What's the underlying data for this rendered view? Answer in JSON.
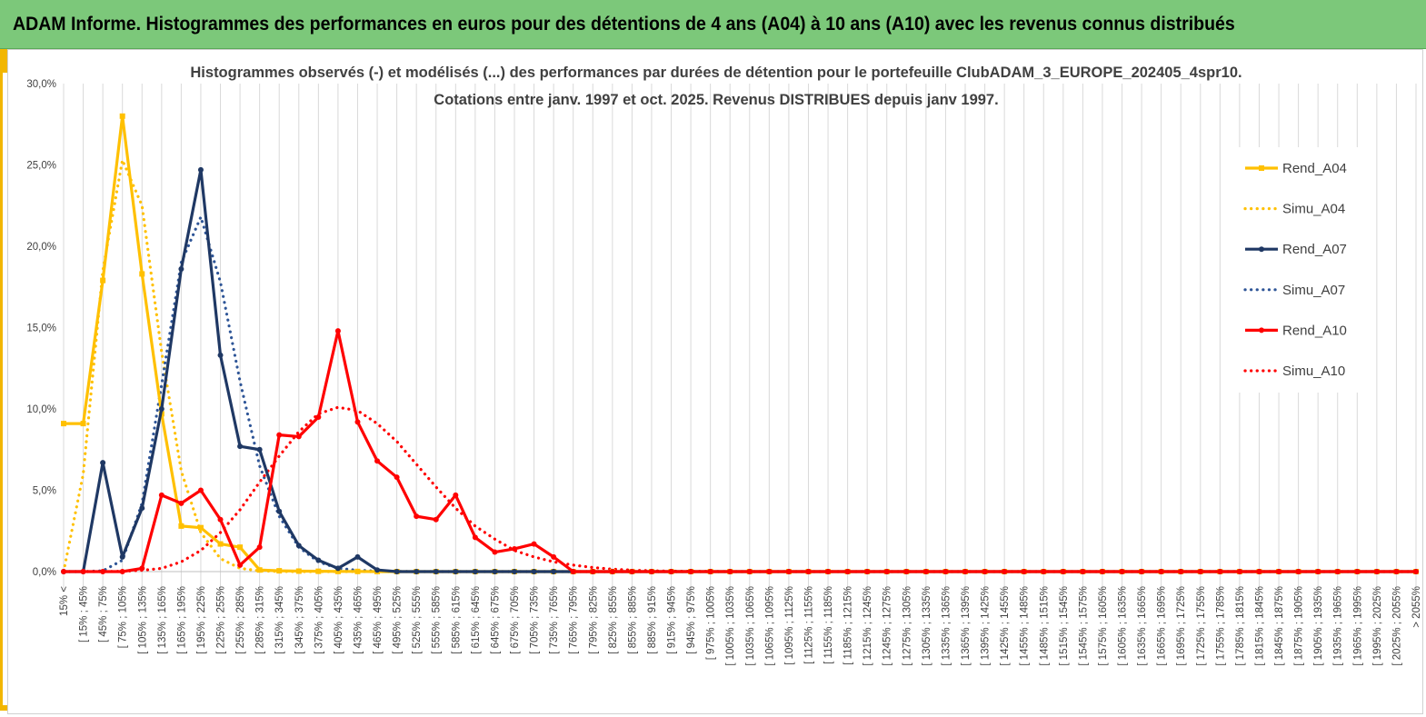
{
  "banner": {
    "text": "ADAM Informe. Histogrammes des performances en euros pour des détentions de 4 ans (A04) à 10 ans (A10) avec les revenus connus distribués"
  },
  "colors": {
    "banner_bg": "#7cc87a",
    "accent": "#f2b600",
    "a04": "#ffc000",
    "a07": "#1f3864",
    "a10": "#ff0000",
    "a07_sim": "#2e5597"
  },
  "chart_data": {
    "type": "line",
    "title_lines": [
      "Histogrammes observés (-) et modélisés (...) des performances par durées de détention pour le portefeuille ClubADAM_3_EUROPE_202405_4spr10.",
      "Cotations  entre janv. 1997 et oct. 2025. Revenus DISTRIBUES depuis janv 1997."
    ],
    "xlabel": "",
    "ylabel": "",
    "ylim": [
      0,
      0.3
    ],
    "yticks": [
      "0,0%",
      "5,0%",
      "10,0%",
      "15,0%",
      "20,0%",
      "25,0%",
      "30,0%"
    ],
    "grid": "vertical",
    "legend_position": "right",
    "categories": [
      "15% <",
      "[ 15% ; 45%",
      "[ 45% ; 75%",
      "[ 75% ; 105%",
      "[ 105% ; 135%",
      "[ 135% ; 165%",
      "[ 165% ; 195%",
      "[ 195% ; 225%",
      "[ 225% ; 255%",
      "[ 255% ; 285%",
      "[ 285% ; 315%",
      "[ 315% ; 345%",
      "[ 345% ; 375%",
      "[ 375% ; 405%",
      "[ 405% ; 435%",
      "[ 435% ; 465%",
      "[ 465% ; 495%",
      "[ 495% ; 525%",
      "[ 525% ; 555%",
      "[ 555% ; 585%",
      "[ 585% ; 615%",
      "[ 615% ; 645%",
      "[ 645% ; 675%",
      "[ 675% ; 705%",
      "[ 705% ; 735%",
      "[ 735% ; 765%",
      "[ 765% ; 795%",
      "[ 795% ; 825%",
      "[ 825% ; 855%",
      "[ 855% ; 885%",
      "[ 885% ; 915%",
      "[ 915% ; 945%",
      "[ 945% ; 975%",
      "[ 975% ; 1005%",
      "[ 1005% ; 1035%",
      "[ 1035% ; 1065%",
      "[ 1065% ; 1095%",
      "[ 1095% ; 1125%",
      "[ 1125% ; 1155%",
      "[ 1155% ; 1185%",
      "[ 1185% ; 1215%",
      "[ 1215% ; 1245%",
      "[ 1245% ; 1275%",
      "[ 1275% ; 1305%",
      "[ 1305% ; 1335%",
      "[ 1335% ; 1365%",
      "[ 1365% ; 1395%",
      "[ 1395% ; 1425%",
      "[ 1425% ; 1455%",
      "[ 1455% ; 1485%",
      "[ 1485% ; 1515%",
      "[ 1515% ; 1545%",
      "[ 1545% ; 1575%",
      "[ 1575% ; 1605%",
      "[ 1605% ; 1635%",
      "[ 1635% ; 1665%",
      "[ 1665% ; 1695%",
      "[ 1695% ; 1725%",
      "[ 1725% ; 1755%",
      "[ 1755% ; 1785%",
      "[ 1785% ; 1815%",
      "[ 1815% ; 1845%",
      "[ 1845% ; 1875%",
      "[ 1875% ; 1905%",
      "[ 1905% ; 1935%",
      "[ 1935% ; 1965%",
      "[ 1965% ; 1995%",
      "[ 1995% ; 2025%",
      "[ 2025% ; 2055%",
      "> 2055%"
    ],
    "series": [
      {
        "name": "Rend_A04",
        "style": "solid",
        "color": "#ffc000",
        "values": [
          0.091,
          0.091,
          0.179,
          0.28,
          0.183,
          0.097,
          0.028,
          0.027,
          0.017,
          0.015,
          0.001,
          0.0005,
          0.0003,
          0.0002,
          0.0001,
          0.0001,
          0,
          0,
          0,
          0,
          0,
          0,
          0,
          0,
          0,
          0,
          0,
          0,
          0,
          0,
          0,
          0,
          0,
          0,
          0,
          0,
          0,
          0,
          0,
          0,
          0,
          0,
          0,
          0,
          0,
          0,
          0,
          0,
          0,
          0,
          0,
          0,
          0,
          0,
          0,
          0,
          0,
          0,
          0,
          0,
          0,
          0,
          0,
          0,
          0,
          0,
          0,
          0,
          0,
          0
        ]
      },
      {
        "name": "Simu_A04",
        "style": "dotted",
        "color": "#ffc000",
        "values": [
          0.0,
          0.06,
          0.185,
          0.253,
          0.225,
          0.135,
          0.062,
          0.024,
          0.008,
          0.002,
          0.0005,
          0.0001,
          0,
          0,
          0,
          0,
          0,
          0,
          0,
          0,
          0,
          0,
          0,
          0,
          0,
          0,
          0,
          0,
          0,
          0,
          0,
          0,
          0,
          0,
          0,
          0,
          0,
          0,
          0,
          0,
          0,
          0,
          0,
          0,
          0,
          0,
          0,
          0,
          0,
          0,
          0,
          0,
          0,
          0,
          0,
          0,
          0,
          0,
          0,
          0,
          0,
          0,
          0,
          0,
          0,
          0,
          0,
          0,
          0,
          0
        ]
      },
      {
        "name": "Rend_A07",
        "style": "solid",
        "color": "#1f3864",
        "values": [
          0,
          0,
          0.067,
          0.009,
          0.039,
          0.1,
          0.186,
          0.247,
          0.133,
          0.077,
          0.075,
          0.037,
          0.016,
          0.007,
          0.002,
          0.009,
          0.001,
          0,
          0,
          0,
          0,
          0,
          0,
          0,
          0,
          0,
          0,
          0,
          0,
          0,
          0,
          0,
          0,
          0,
          0,
          0,
          0,
          0,
          0,
          0,
          0,
          0,
          0,
          0,
          0,
          0,
          0,
          0,
          0,
          0,
          0,
          0,
          0,
          0,
          0,
          0,
          0,
          0,
          0,
          0,
          0,
          0,
          0,
          0,
          0,
          0,
          0,
          0,
          0,
          0
        ]
      },
      {
        "name": "Simu_A07",
        "style": "dotted",
        "color": "#2e5597",
        "values": [
          0,
          0,
          0.0005,
          0.007,
          0.042,
          0.115,
          0.19,
          0.218,
          0.178,
          0.117,
          0.065,
          0.034,
          0.015,
          0.006,
          0.002,
          0.0008,
          0.0003,
          0.0001,
          0,
          0,
          0,
          0,
          0,
          0,
          0,
          0,
          0,
          0,
          0,
          0,
          0,
          0,
          0,
          0,
          0,
          0,
          0,
          0,
          0,
          0,
          0,
          0,
          0,
          0,
          0,
          0,
          0,
          0,
          0,
          0,
          0,
          0,
          0,
          0,
          0,
          0,
          0,
          0,
          0,
          0,
          0,
          0,
          0,
          0,
          0,
          0,
          0,
          0,
          0,
          0
        ]
      },
      {
        "name": "Rend_A10",
        "style": "solid",
        "color": "#ff0000",
        "values": [
          0,
          0,
          0,
          0,
          0.002,
          0.047,
          0.042,
          0.05,
          0.032,
          0.004,
          0.015,
          0.084,
          0.083,
          0.095,
          0.148,
          0.092,
          0.068,
          0.058,
          0.034,
          0.032,
          0.047,
          0.021,
          0.012,
          0.014,
          0.017,
          0.009,
          0,
          0,
          0,
          0,
          0,
          0,
          0,
          0,
          0,
          0,
          0,
          0,
          0,
          0,
          0,
          0,
          0,
          0,
          0,
          0,
          0,
          0,
          0,
          0,
          0,
          0,
          0,
          0,
          0,
          0,
          0,
          0,
          0,
          0,
          0,
          0,
          0,
          0,
          0,
          0,
          0,
          0,
          0,
          0
        ]
      },
      {
        "name": "Simu_A10",
        "style": "dotted",
        "color": "#ff0000",
        "values": [
          0,
          0,
          0,
          0.0002,
          0.0008,
          0.002,
          0.006,
          0.013,
          0.024,
          0.038,
          0.055,
          0.071,
          0.086,
          0.097,
          0.101,
          0.099,
          0.091,
          0.08,
          0.066,
          0.052,
          0.039,
          0.028,
          0.02,
          0.013,
          0.009,
          0.006,
          0.004,
          0.0025,
          0.0015,
          0.0009,
          0.0005,
          0.0003,
          0.0002,
          0.0001,
          0,
          0,
          0,
          0,
          0,
          0,
          0,
          0,
          0,
          0,
          0,
          0,
          0,
          0,
          0,
          0,
          0,
          0,
          0,
          0,
          0,
          0,
          0,
          0,
          0,
          0,
          0,
          0,
          0,
          0,
          0,
          0,
          0,
          0,
          0,
          0
        ]
      }
    ]
  }
}
